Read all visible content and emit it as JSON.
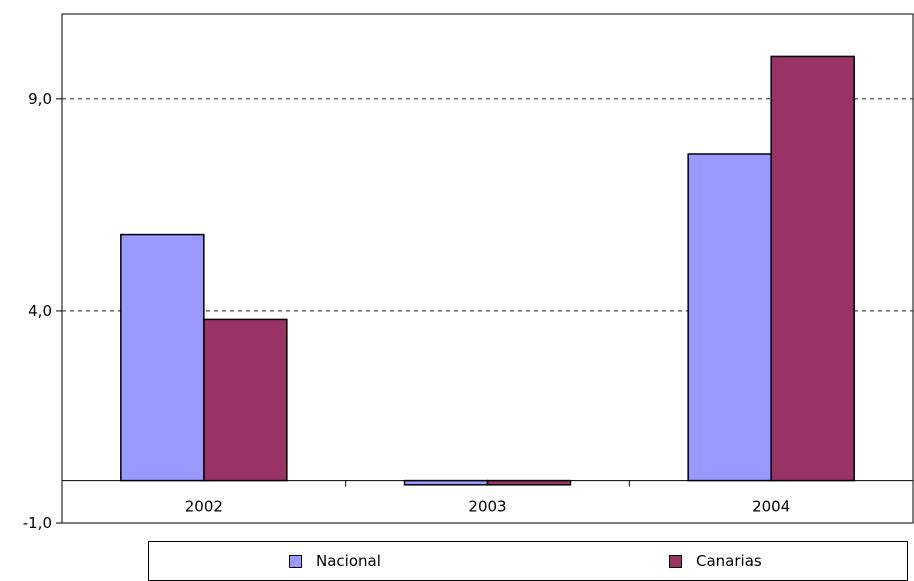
{
  "chart_data": {
    "type": "bar",
    "categories": [
      "2002",
      "2003",
      "2004"
    ],
    "series": [
      {
        "name": "Nacional",
        "values": [
          5.8,
          -0.1,
          7.7
        ],
        "color": "#9999ff"
      },
      {
        "name": "Canarias",
        "values": [
          3.8,
          -0.1,
          10.0
        ],
        "color": "#993366"
      }
    ],
    "yticks": [
      -1.0,
      4.0,
      9.0
    ],
    "ytick_labels": [
      "-1,0",
      "4,0",
      "9,0"
    ],
    "ylim": [
      -1.0,
      11.0
    ],
    "grid": "dashed horizontal at major ticks",
    "legend_position": "bottom",
    "title": "",
    "xlabel": "",
    "ylabel": ""
  }
}
